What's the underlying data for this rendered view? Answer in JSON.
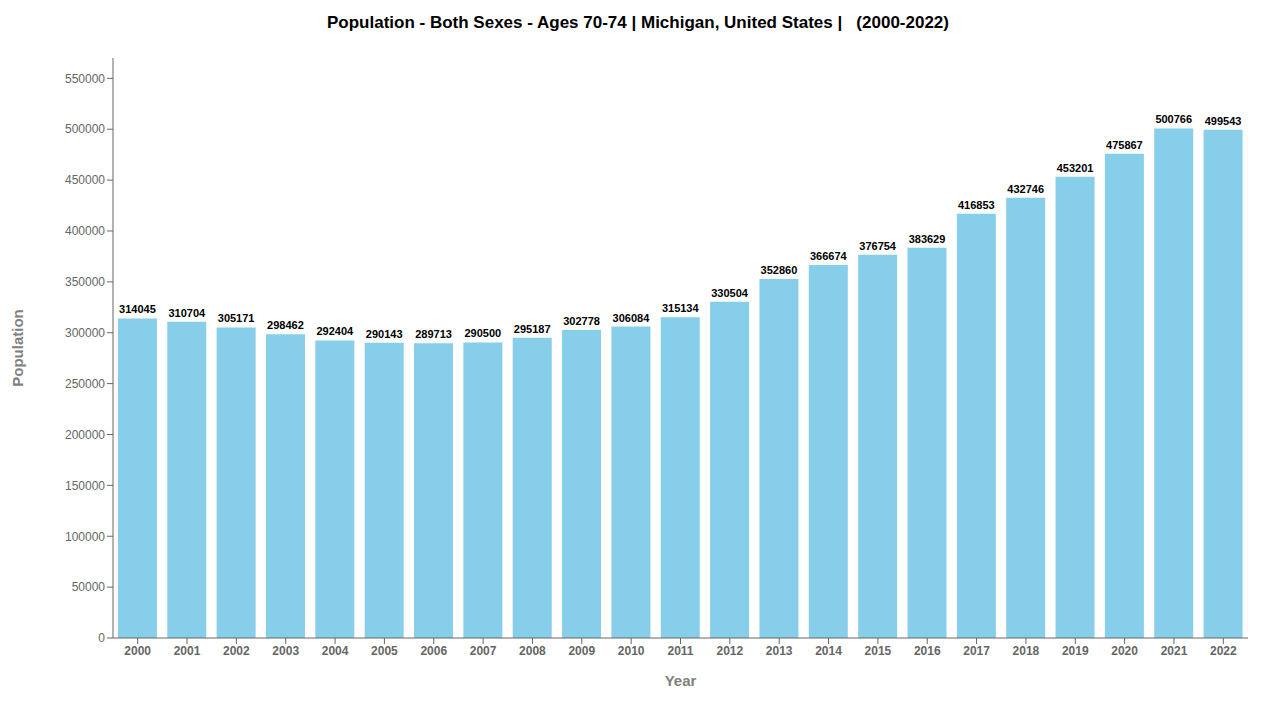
{
  "chart_data": {
    "type": "bar",
    "title": "Population - Both Sexes - Ages 70-74 | Michigan, United States |   (2000-2022)",
    "xlabel": "Year",
    "ylabel": "Population",
    "categories": [
      "2000",
      "2001",
      "2002",
      "2003",
      "2004",
      "2005",
      "2006",
      "2007",
      "2008",
      "2009",
      "2010",
      "2011",
      "2012",
      "2013",
      "2014",
      "2015",
      "2016",
      "2017",
      "2018",
      "2019",
      "2020",
      "2021",
      "2022"
    ],
    "values": [
      314045,
      310704,
      305171,
      298462,
      292404,
      290143,
      289713,
      290500,
      295187,
      302778,
      306084,
      315134,
      330504,
      352860,
      366674,
      376754,
      383629,
      416853,
      432746,
      453201,
      475867,
      500766,
      499543
    ],
    "color": "#87CEEB",
    "ylim": [
      0,
      570000
    ],
    "yticks": [
      0,
      50000,
      100000,
      150000,
      200000,
      250000,
      300000,
      350000,
      400000,
      450000,
      500000,
      550000
    ],
    "grid": false,
    "data_labels": true
  }
}
